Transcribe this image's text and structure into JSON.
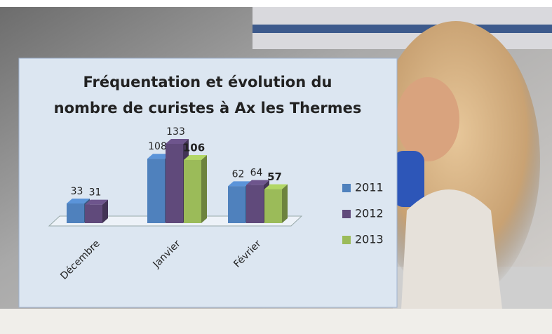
{
  "chart_data": {
    "type": "bar3d",
    "title": [
      "Fréquentation et évolution du",
      "nombre de curistes à Ax les Thermes"
    ],
    "categories": [
      "Décembre",
      "Janvier",
      "Février"
    ],
    "series": [
      {
        "name": "2011",
        "color": "#4f81bd",
        "values": [
          33,
          108,
          62
        ]
      },
      {
        "name": "2012",
        "color": "#604a7b",
        "values": [
          31,
          133,
          64
        ]
      },
      {
        "name": "2013",
        "color": "#9bbb59",
        "values": [
          null,
          106,
          57
        ]
      }
    ],
    "legend": "right"
  }
}
